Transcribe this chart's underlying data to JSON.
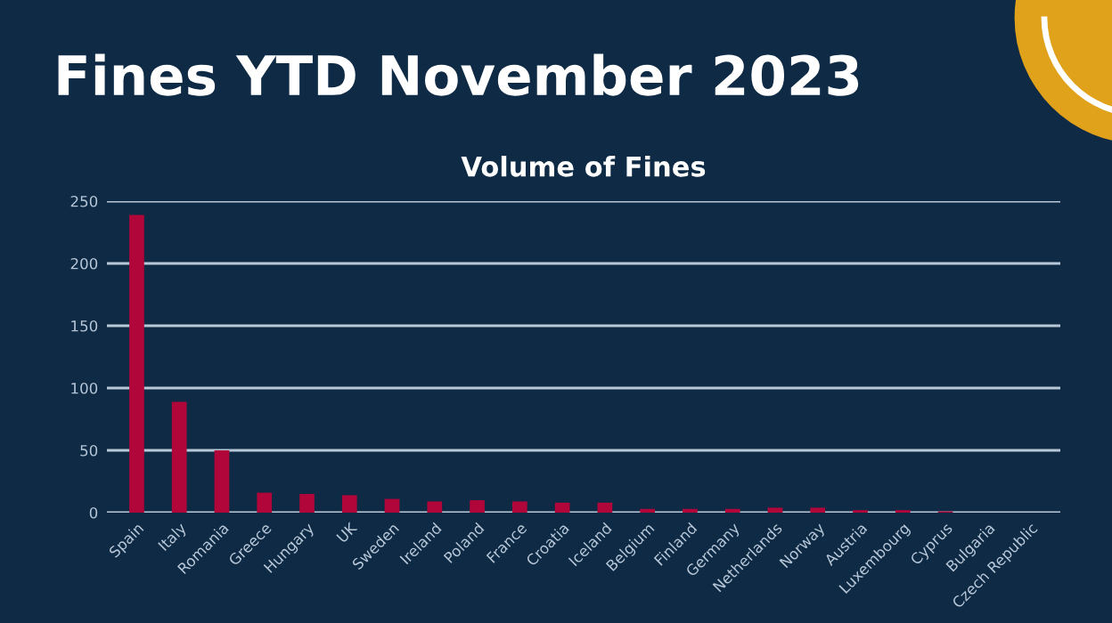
{
  "chart_data": {
    "type": "bar",
    "title": "Fines YTD November 2023",
    "subtitle": "Volume of Fines",
    "categories": [
      "Spain",
      "Italy",
      "Romania",
      "Greece",
      "Hungary",
      "UK",
      "Sweden",
      "Ireland",
      "Poland",
      "France",
      "Croatia",
      "Iceland",
      "Belgium",
      "Finland",
      "Germany",
      "Netherlands",
      "Norway",
      "Austria",
      "Luxembourg",
      "Cyprus",
      "Bulgaria",
      "Czech Republic"
    ],
    "values": [
      239,
      89,
      50,
      16,
      15,
      14,
      11,
      9,
      10,
      9,
      8,
      8,
      3,
      3,
      3,
      4,
      4,
      2,
      2,
      1,
      0,
      0
    ],
    "color": "#b0063a",
    "ylim": [
      0,
      250
    ],
    "yticks": [
      0,
      50,
      100,
      150,
      200,
      250
    ],
    "grid": "y",
    "legend": false
  }
}
